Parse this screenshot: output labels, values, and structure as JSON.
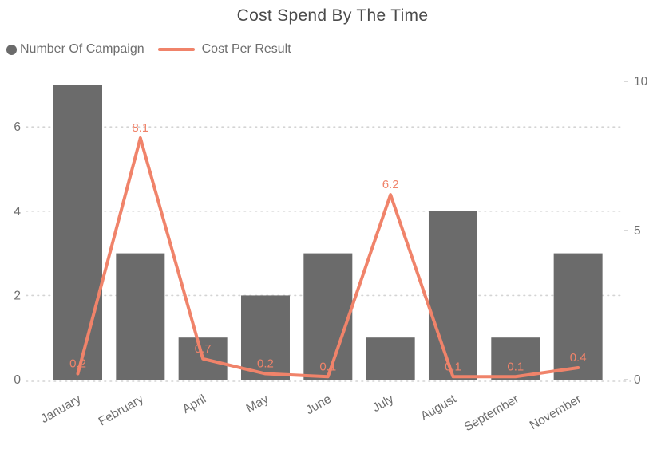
{
  "title": "Cost Spend By The Time",
  "legend": [
    {
      "label": "Number Of Campaign",
      "marker": "circle",
      "color": "#6b6b6b"
    },
    {
      "label": "Cost Per Result",
      "marker": "line",
      "color": "#f0836a"
    }
  ],
  "colors": {
    "bar": "#6b6b6b",
    "line": "#f0836a",
    "data_label": "#f0836a",
    "axis_text": "#6e6e6e",
    "title_text": "#4a4a4a",
    "grid": "#d4d4d4"
  },
  "chart_data": {
    "type": "combo",
    "title": "Cost Spend By The Time",
    "categories": [
      "January",
      "February",
      "April",
      "May",
      "June",
      "July",
      "August",
      "September",
      "November"
    ],
    "series": [
      {
        "name": "Number Of Campaign",
        "type": "bar",
        "y_axis": "left",
        "values": [
          7,
          3,
          1,
          2,
          3,
          1,
          4,
          1,
          3
        ]
      },
      {
        "name": "Cost Per Result",
        "type": "line",
        "y_axis": "right",
        "values": [
          0.2,
          8.1,
          0.7,
          0.2,
          0.1,
          6.2,
          0.1,
          0.1,
          0.4
        ],
        "data_labels": [
          "0.2",
          "8.1",
          "0.7",
          "0.2",
          "0.1",
          "6.2",
          "0.1",
          "0.1",
          "0.4"
        ]
      }
    ],
    "left_axis": {
      "ticks": [
        0,
        2,
        4,
        6
      ],
      "range": [
        0,
        7.3
      ]
    },
    "right_axis": {
      "ticks": [
        0,
        5,
        10
      ],
      "range": [
        0,
        10.6
      ]
    },
    "grid": {
      "horizontal": "dotted",
      "vertical": "none"
    },
    "legend_position": "top-left",
    "x_label_rotation": -30
  }
}
